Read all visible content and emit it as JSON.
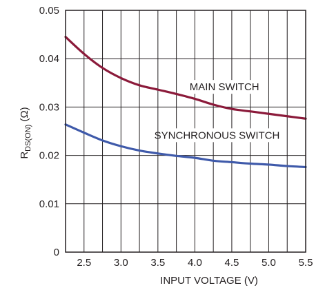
{
  "chart_data": {
    "type": "line",
    "title": "",
    "xlabel": "INPUT VOLTAGE (V)",
    "ylabel": {
      "main": "R",
      "subscript": "DS(ON)",
      "unit": " (Ω)"
    },
    "xlim": [
      2.25,
      5.5
    ],
    "ylim": [
      0,
      0.05
    ],
    "grid": true,
    "x_ticks": [
      {
        "value": 2.5,
        "label": "2.5"
      },
      {
        "value": 3.0,
        "label": "3.0"
      },
      {
        "value": 3.5,
        "label": "3.5"
      },
      {
        "value": 4.0,
        "label": "4.0"
      },
      {
        "value": 4.5,
        "label": "4.5"
      },
      {
        "value": 5.0,
        "label": "5.0"
      },
      {
        "value": 5.5,
        "label": "5.5"
      }
    ],
    "x_gridlines": [
      2.5,
      2.75,
      3.0,
      3.25,
      3.5,
      3.75,
      4.0,
      4.25,
      4.5,
      4.75,
      5.0,
      5.25
    ],
    "y_ticks": [
      {
        "value": 0,
        "label": "0"
      },
      {
        "value": 0.01,
        "label": "0.01"
      },
      {
        "value": 0.02,
        "label": "0.02"
      },
      {
        "value": 0.03,
        "label": "0.03"
      },
      {
        "value": 0.04,
        "label": "0.04"
      },
      {
        "value": 0.05,
        "label": "0.05"
      }
    ],
    "series": [
      {
        "name": "MAIN SWITCH",
        "color": "#8b1a3a",
        "x": [
          2.25,
          2.5,
          2.75,
          3.0,
          3.25,
          3.5,
          3.75,
          4.0,
          4.25,
          4.5,
          4.75,
          5.0,
          5.25,
          5.5
        ],
        "y": [
          0.0445,
          0.041,
          0.0381,
          0.036,
          0.0345,
          0.0336,
          0.0327,
          0.0317,
          0.0305,
          0.0296,
          0.0291,
          0.0286,
          0.0281,
          0.0276
        ]
      },
      {
        "name": "SYNCHRONOUS SWITCH",
        "color": "#3f5aaa",
        "x": [
          2.25,
          2.5,
          2.75,
          3.0,
          3.25,
          3.5,
          3.75,
          4.0,
          4.25,
          4.5,
          4.75,
          5.0,
          5.25,
          5.5
        ],
        "y": [
          0.0264,
          0.0247,
          0.0231,
          0.0219,
          0.021,
          0.0204,
          0.0199,
          0.0195,
          0.0189,
          0.0186,
          0.0183,
          0.0181,
          0.0178,
          0.0176
        ]
      }
    ],
    "annotations": [
      {
        "text": "MAIN SWITCH",
        "x": 4.4,
        "y": 0.0336
      },
      {
        "text": "SYNCHRONOUS SWITCH",
        "x": 4.3,
        "y": 0.0236
      }
    ]
  }
}
